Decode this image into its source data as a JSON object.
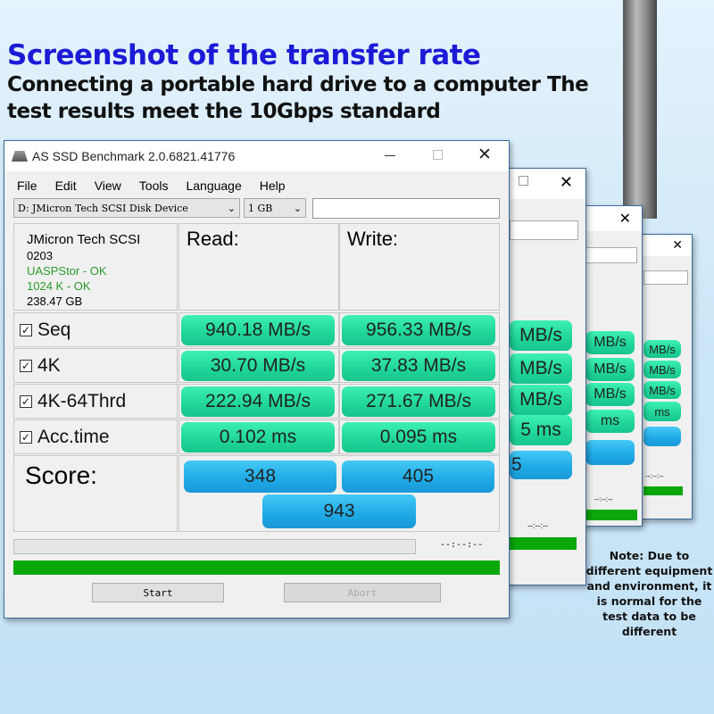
{
  "headline": "Screenshot of the transfer rate",
  "subline1": "Connecting a portable hard drive to a computer The",
  "subline2": "test results meet the 10Gbps standard",
  "note": "Note: Due to different equipment and environment, it is normal for the test data to be different",
  "window": {
    "title": "AS SSD Benchmark 2.0.6821.41776",
    "menu": [
      "File",
      "Edit",
      "View",
      "Tools",
      "Language",
      "Help"
    ],
    "drive": "D: JMicron Tech SCSI Disk Device",
    "size": "1 GB",
    "info": {
      "name": "JMicron Tech SCSI",
      "fw": "0203",
      "driver": "UASPStor - OK",
      "align": "1024 K - OK",
      "capacity": "238.47 GB"
    },
    "read_label": "Read:",
    "write_label": "Write:",
    "rows": [
      {
        "label": "Seq",
        "read": "940.18 MB/s",
        "write": "956.33 MB/s"
      },
      {
        "label": "4K",
        "read": "30.70 MB/s",
        "write": "37.83 MB/s"
      },
      {
        "label": "4K-64Thrd",
        "read": "222.94 MB/s",
        "write": "271.67 MB/s"
      },
      {
        "label": "Acc.time",
        "read": "0.102 ms",
        "write": "0.095 ms"
      }
    ],
    "score_label": "Score:",
    "score_read": "348",
    "score_write": "405",
    "score_total": "943",
    "time": "--:--:--",
    "start": "Start",
    "abort": "Abort",
    "check": "☑"
  },
  "back": {
    "mb": "MB/s",
    "ms": "ms",
    "ms5": "5 ms",
    "s5": "5",
    "time": "--:--:--"
  },
  "colors": {
    "green": "#1fd59a",
    "blue": "#1ea9e6",
    "progress": "#0aa80a",
    "title": "#1b1bd6"
  }
}
